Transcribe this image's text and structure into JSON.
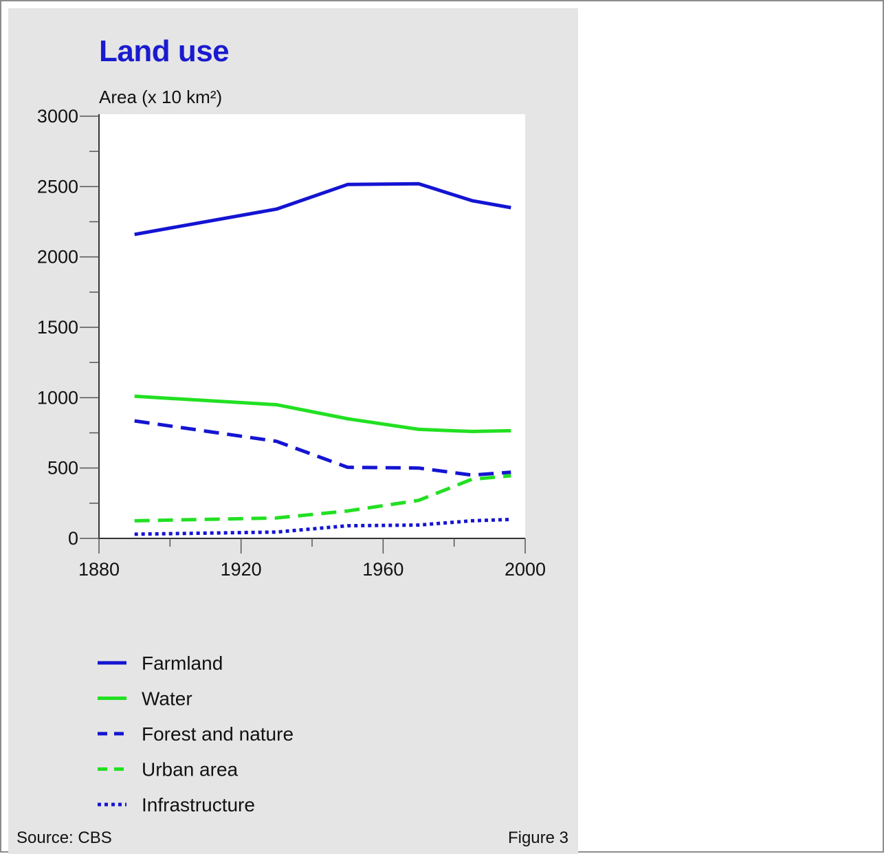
{
  "chart_data": {
    "type": "line",
    "title": "Land use",
    "ylabel": "Area (x 10 km²)",
    "xlabel": "",
    "xlim": [
      1880,
      2000
    ],
    "ylim": [
      0,
      3000
    ],
    "x_ticks": [
      "1880",
      "1920",
      "1960",
      "2000"
    ],
    "y_ticks": [
      "0",
      "500",
      "1000",
      "1500",
      "2000",
      "2500",
      "3000"
    ],
    "x_tick_values": [
      1880,
      1920,
      1960,
      2000
    ],
    "y_tick_values": [
      0,
      500,
      1000,
      1500,
      2000,
      2500,
      3000
    ],
    "grid": false,
    "legend_position": "bottom",
    "series": [
      {
        "name": "Farmland",
        "color": "#1414d2",
        "style": "solid",
        "x": [
          1890,
          1930,
          1950,
          1970,
          1985,
          1996
        ],
        "y": [
          2160,
          2340,
          2515,
          2520,
          2400,
          2350
        ]
      },
      {
        "name": "Water",
        "color": "#22e022",
        "style": "solid",
        "x": [
          1890,
          1930,
          1950,
          1970,
          1985,
          1996
        ],
        "y": [
          1010,
          950,
          850,
          775,
          760,
          765
        ]
      },
      {
        "name": "Forest and nature",
        "color": "#1414d2",
        "style": "dashed",
        "x": [
          1890,
          1930,
          1950,
          1970,
          1985,
          1996
        ],
        "y": [
          835,
          690,
          505,
          500,
          450,
          470
        ]
      },
      {
        "name": "Urban area",
        "color": "#22e022",
        "style": "dashed",
        "x": [
          1890,
          1930,
          1950,
          1970,
          1985,
          1996
        ],
        "y": [
          125,
          145,
          195,
          270,
          420,
          445
        ]
      },
      {
        "name": "Infrastructure",
        "color": "#1414d2",
        "style": "dotted",
        "x": [
          1890,
          1930,
          1950,
          1970,
          1985,
          1996
        ],
        "y": [
          30,
          45,
          90,
          95,
          125,
          135
        ]
      }
    ],
    "source": "Source: CBS",
    "figure_label": "Figure 3"
  }
}
